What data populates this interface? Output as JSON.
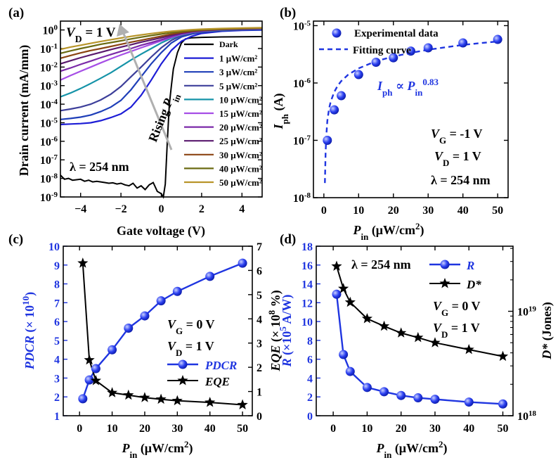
{
  "chart_data": [
    {
      "panel": "(a)",
      "type": "line",
      "xlabel": "Gate voltage (V)",
      "ylabel": "Drain current (mA/mm)",
      "xlim": [
        -5,
        5
      ],
      "xticks": [
        "-4",
        "-2",
        "0",
        "2",
        "4"
      ],
      "yscale": "log",
      "ylim": [
        1e-09,
        3
      ],
      "yticks": [
        "10^-9",
        "10^-8",
        "10^-7",
        "10^-6",
        "10^-5",
        "10^-4",
        "10^-3",
        "10^-2",
        "10^-1",
        "10^0"
      ],
      "annotations": {
        "vd": "V_D = 1 V",
        "wavelength": "λ = 254 nm",
        "arrow": "Rising P_in"
      },
      "legend_placement": "right",
      "x": [
        -5,
        -4.5,
        -4,
        -3.5,
        -3,
        -2.5,
        -2,
        -1.5,
        -1,
        -0.5,
        0,
        0.5,
        1,
        1.5,
        2,
        3,
        4,
        5
      ],
      "series": [
        {
          "name": "Dark",
          "color": "#000000",
          "x": [
            -5,
            -4.8,
            -4.6,
            -4.4,
            -4.2,
            -4,
            -3.8,
            -3.6,
            -3.4,
            -3.2,
            -3,
            -2.8,
            -2.6,
            -2.4,
            -2.2,
            -2,
            -1.8,
            -1.6,
            -1.4,
            -1.2,
            -1,
            -0.8,
            -0.6,
            -0.4,
            -0.2,
            0,
            0.1,
            0.2,
            0.3,
            0.4,
            0.5,
            0.6,
            0.8,
            1,
            1.2,
            1.5,
            2,
            3,
            4,
            5
          ],
          "y": [
            1.5e-08,
            9e-09,
            1e-08,
            8e-09,
            8.5e-09,
            9e-09,
            7e-09,
            8e-09,
            6.5e-09,
            7e-09,
            6.5e-09,
            6e-09,
            5.5e-09,
            5.8e-09,
            5e-09,
            5.5e-09,
            4.5e-09,
            4e-09,
            5.5e-09,
            3e-09,
            4e-09,
            2.5e-09,
            4.5e-09,
            6e-09,
            2e-09,
            1.5e-09,
            1e-09,
            5e-09,
            1e-06,
            0.0001,
            0.001,
            0.008,
            0.06,
            0.2,
            0.33,
            0.38,
            0.4,
            0.42,
            0.43,
            0.44
          ]
        },
        {
          "name": "1 μW/cm²",
          "color": "#1d1dd6",
          "y": [
            8e-06,
            8.5e-06,
            9e-06,
            1e-05,
            1.3e-05,
            1.9e-05,
            3e-05,
            7e-05,
            0.0003,
            0.002,
            0.015,
            0.08,
            0.25,
            0.45,
            0.65,
            0.85,
            0.95,
            1.0
          ]
        },
        {
          "name": "3 μW/cm²",
          "color": "#1f3fb8",
          "y": [
            1.5e-05,
            1.7e-05,
            2e-05,
            2.6e-05,
            4e-05,
            7e-05,
            0.00016,
            0.0006,
            0.003,
            0.015,
            0.06,
            0.2,
            0.42,
            0.6,
            0.75,
            0.9,
            1.0,
            1.05
          ]
        },
        {
          "name": "5 μW/cm²",
          "color": "#3d3f9a",
          "y": [
            4.5e-05,
            5.5e-05,
            7e-05,
            0.0001,
            0.00017,
            0.00035,
            0.0009,
            0.003,
            0.01,
            0.035,
            0.11,
            0.28,
            0.5,
            0.68,
            0.8,
            0.95,
            1.05,
            1.1
          ]
        },
        {
          "name": "10 μW/cm²",
          "color": "#1593a8",
          "y": [
            0.00025,
            0.0004,
            0.0007,
            0.0013,
            0.0025,
            0.005,
            0.011,
            0.024,
            0.05,
            0.1,
            0.2,
            0.36,
            0.55,
            0.72,
            0.85,
            1.0,
            1.1,
            1.15
          ]
        },
        {
          "name": "15 μW/cm²",
          "color": "#a64ee6",
          "y": [
            0.002,
            0.0035,
            0.006,
            0.01,
            0.017,
            0.028,
            0.045,
            0.07,
            0.11,
            0.17,
            0.26,
            0.4,
            0.58,
            0.75,
            0.88,
            1.03,
            1.12,
            1.18
          ]
        },
        {
          "name": "20 μW/cm²",
          "color": "#7b2aa8",
          "y": [
            0.006,
            0.009,
            0.014,
            0.021,
            0.032,
            0.048,
            0.07,
            0.1,
            0.15,
            0.21,
            0.3,
            0.44,
            0.62,
            0.78,
            0.9,
            1.05,
            1.14,
            1.2
          ]
        },
        {
          "name": "25 μW/cm²",
          "color": "#5a1a6e",
          "y": [
            0.015,
            0.022,
            0.032,
            0.045,
            0.063,
            0.088,
            0.12,
            0.16,
            0.22,
            0.29,
            0.38,
            0.52,
            0.68,
            0.82,
            0.93,
            1.07,
            1.16,
            1.22
          ]
        },
        {
          "name": "30 μW/cm²",
          "color": "#8b4513",
          "y": [
            0.03,
            0.042,
            0.058,
            0.078,
            0.1,
            0.13,
            0.17,
            0.22,
            0.28,
            0.36,
            0.46,
            0.6,
            0.75,
            0.87,
            0.97,
            1.1,
            1.18,
            1.25
          ]
        },
        {
          "name": "40 μW/cm²",
          "color": "#6b6b12",
          "y": [
            0.055,
            0.075,
            0.1,
            0.13,
            0.17,
            0.21,
            0.26,
            0.33,
            0.41,
            0.5,
            0.6,
            0.72,
            0.84,
            0.94,
            1.02,
            1.14,
            1.22,
            1.28
          ]
        },
        {
          "name": "50 μW/cm²",
          "color": "#b8952a",
          "y": [
            0.09,
            0.12,
            0.15,
            0.19,
            0.24,
            0.3,
            0.37,
            0.45,
            0.54,
            0.64,
            0.74,
            0.85,
            0.95,
            1.03,
            1.1,
            1.2,
            1.27,
            1.32
          ]
        }
      ]
    },
    {
      "panel": "(b)",
      "type": "scatter",
      "xlabel": "P_in (μW/cm²)",
      "ylabel": "I_ph (A)",
      "xlim": [
        -3,
        53
      ],
      "xticks": [
        "0",
        "10",
        "20",
        "30",
        "40",
        "50"
      ],
      "yscale": "log",
      "ylim": [
        1e-08,
        1.2e-05
      ],
      "yticks": [
        "10^-8",
        "10^-7",
        "10^-6",
        "10^-5"
      ],
      "annotations": {
        "power_law": "I_ph ∝ P_in^0.83",
        "vg": "V_G = -1 V",
        "vd": "V_D = 1 V",
        "wavelength": "λ = 254 nm"
      },
      "legend": [
        "Experimental data",
        "Fitting curve"
      ],
      "legend_placement": "top-right",
      "series": [
        {
          "name": "Experimental data",
          "color": "#1f35e0",
          "x": [
            1,
            3,
            5,
            10,
            15,
            20,
            25,
            30,
            40,
            50
          ],
          "y": [
            1e-07,
            3.4e-07,
            6e-07,
            1.4e-06,
            2.3e-06,
            2.75e-06,
            3.6e-06,
            4.1e-06,
            5e-06,
            5.75e-06
          ]
        },
        {
          "name": "Fitting curve",
          "color": "#1f35e0",
          "x": [
            0.3,
            0.5,
            0.7,
            1,
            1.5,
            2,
            3,
            4,
            5,
            7,
            10,
            15,
            20,
            25,
            30,
            35,
            40,
            45,
            50
          ],
          "y": [
            1.8e-08,
            6e-08,
            1.2e-07,
            2.2e-07,
            3.6e-07,
            4.8e-07,
            7e-07,
            9e-07,
            1.08e-06,
            1.4e-06,
            1.8e-06,
            2.4e-06,
            2.9e-06,
            3.35e-06,
            3.8e-06,
            4.2e-06,
            4.6e-06,
            4.95e-06,
            5.3e-06
          ]
        }
      ]
    },
    {
      "panel": "(c)",
      "type": "line",
      "xlabel": "P_in (μW/cm²)",
      "ylabel_left": "PDCR (×10¹⁰)",
      "ylabel_right": "EQE (×10⁸ %)",
      "xlim": [
        -5,
        53
      ],
      "xticks": [
        "0",
        "10",
        "20",
        "30",
        "40",
        "50"
      ],
      "ylim_left": [
        1,
        10
      ],
      "yticks_left": [
        "1",
        "2",
        "3",
        "4",
        "5",
        "6",
        "7",
        "8",
        "9",
        "10"
      ],
      "ylim_right": [
        0,
        7
      ],
      "yticks_right": [
        "0",
        "1",
        "2",
        "3",
        "4",
        "5",
        "6",
        "7"
      ],
      "annotations": {
        "vg": "V_G = 0 V",
        "vd": "V_D = 1 V"
      },
      "legend": [
        "PDCR",
        "EQE"
      ],
      "legend_placement": "right",
      "series": [
        {
          "name": "PDCR",
          "axis": "left",
          "color": "#1f35e0",
          "marker": "circle",
          "x": [
            1,
            3,
            5,
            10,
            15,
            20,
            25,
            30,
            40,
            50
          ],
          "y": [
            1.9,
            2.9,
            3.5,
            4.5,
            5.65,
            6.3,
            7.1,
            7.6,
            8.4,
            9.1
          ]
        },
        {
          "name": "EQE",
          "axis": "right",
          "color": "#000000",
          "marker": "star",
          "x": [
            1,
            3,
            5,
            10,
            15,
            20,
            25,
            30,
            40,
            50
          ],
          "y": [
            6.3,
            2.3,
            1.45,
            0.95,
            0.85,
            0.75,
            0.68,
            0.62,
            0.55,
            0.45
          ]
        }
      ]
    },
    {
      "panel": "(d)",
      "type": "line",
      "xlabel": "P_in (μW/cm²)",
      "ylabel_left": "R (×10⁵ A/W)",
      "ylabel_right": "D* (Jones)",
      "xlim": [
        -5,
        53
      ],
      "xticks": [
        "0",
        "10",
        "20",
        "30",
        "40",
        "50"
      ],
      "ylim_left": [
        0,
        18
      ],
      "yticks_left": [
        "0",
        "2",
        "4",
        "6",
        "8",
        "10",
        "12",
        "14",
        "16",
        "18"
      ],
      "yscale_right": "log",
      "ylim_right": [
        1e+18,
        4.2e+19
      ],
      "yticks_right": [
        "10^18",
        "10^19"
      ],
      "annotations": {
        "wavelength": "λ = 254 nm",
        "vg": "V_G = 0 V",
        "vd": "V_D = 1 V"
      },
      "legend": [
        "R",
        "D*"
      ],
      "legend_placement": "top-right",
      "series": [
        {
          "name": "R",
          "axis": "left",
          "color": "#1f35e0",
          "marker": "circle",
          "x": [
            1,
            3,
            5,
            10,
            15,
            20,
            25,
            30,
            40,
            50
          ],
          "y": [
            12.9,
            6.5,
            4.7,
            3.0,
            2.55,
            2.15,
            1.9,
            1.75,
            1.45,
            1.25
          ]
        },
        {
          "name": "D*",
          "axis": "right",
          "color": "#000000",
          "marker": "star",
          "x": [
            1,
            3,
            5,
            10,
            15,
            20,
            25,
            30,
            40,
            50
          ],
          "y": [
            2.7e+19,
            1.65e+19,
            1.22e+19,
            8.5e+18,
            7.2e+18,
            6.2e+18,
            5.6e+18,
            5e+18,
            4.3e+18,
            3.7e+18
          ]
        }
      ]
    }
  ]
}
